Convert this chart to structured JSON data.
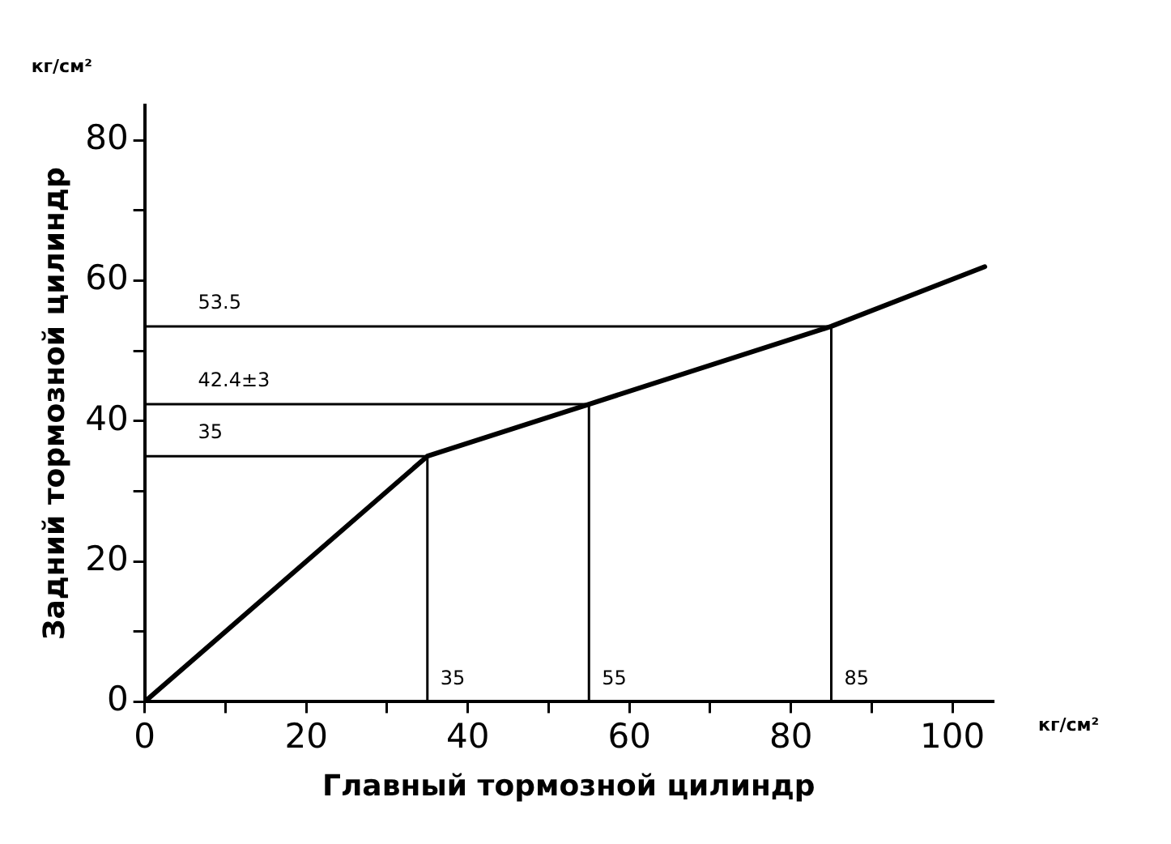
{
  "chart_data": {
    "type": "line",
    "xlabel": "Главный тормозной цилиндр",
    "ylabel": "Задний тормозной цилиндр",
    "xlim": [
      0,
      105
    ],
    "ylim": [
      0,
      85
    ],
    "xticks": [
      0,
      {
        "value": 10,
        "label": null
      },
      20,
      {
        "value": 30,
        "label": null
      },
      40,
      {
        "value": 50,
        "label": null
      },
      60,
      {
        "value": 70,
        "label": null
      },
      80,
      {
        "value": 90,
        "label": null
      },
      100
    ],
    "yticks": [
      0,
      {
        "value": 10,
        "label": null
      },
      20,
      {
        "value": 30,
        "label": null
      },
      40,
      {
        "value": 50,
        "label": null
      },
      60,
      {
        "value": 70,
        "label": null
      },
      80
    ],
    "grid": false,
    "legend": false,
    "marker": "none",
    "line_style": "solid",
    "series": [
      {
        "color": "#000000",
        "x": [
          0,
          35,
          55,
          85,
          104
        ],
        "values": [
          0,
          35,
          42.4,
          53.5,
          62
        ]
      },
      {
        "color": "#000000",
        "x": [
          0,
          35,
          35
        ],
        "values": [
          35,
          35,
          0
        ]
      },
      {
        "color": "#000000",
        "x": [
          0,
          55,
          55
        ],
        "values": [
          42.4,
          42.4,
          0
        ]
      },
      {
        "color": "#000000",
        "x": [
          0,
          85,
          85
        ],
        "values": [
          53.5,
          53.5,
          0
        ]
      }
    ],
    "annotations": [
      "кг/см²",
      "кг/см²",
      {
        "text": "53.5",
        "x": 5,
        "y": 53.5
      },
      {
        "text": "42.4±3",
        "x": 5,
        "y": 42.4
      },
      {
        "text": "35",
        "x": 5,
        "y": 35
      },
      {
        "text": "35",
        "x": 35,
        "y": 0
      },
      {
        "text": "55",
        "x": 55,
        "y": 0
      },
      {
        "text": "85",
        "x": 85,
        "y": 0
      }
    ]
  }
}
